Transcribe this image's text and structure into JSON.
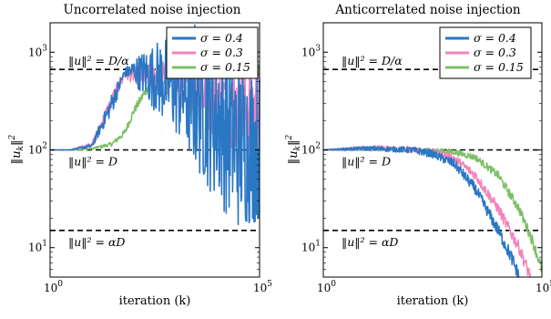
{
  "colors": {
    "s04": "#2a77c4",
    "s03": "#f383bd",
    "s015": "#7cc067",
    "ref": "#000000",
    "axis": "#000000"
  },
  "chart_data": [
    {
      "type": "line",
      "title": "Uncorrelated noise injection",
      "xlabel": "iteration (k)",
      "ylabel": "‖u_k‖²",
      "xscale": "log",
      "yscale": "log",
      "xlim": [
        1,
        100000
      ],
      "ylim": [
        5,
        2000
      ],
      "xticks": [
        {
          "v": 1,
          "b": "10",
          "e": "0"
        },
        {
          "v": 100000,
          "b": "10",
          "e": "5"
        }
      ],
      "yticks": [
        {
          "v": 10,
          "b": "10",
          "e": "1"
        },
        {
          "v": 100,
          "b": "10",
          "e": "2"
        },
        {
          "v": 1000,
          "b": "10",
          "e": "3"
        }
      ],
      "legend_position": "top-right",
      "reference_lines": [
        {
          "y": 666.7,
          "label": "‖u‖² = D/α"
        },
        {
          "y": 100,
          "label": "‖u‖² = D"
        },
        {
          "y": 15,
          "label": "‖u‖² = αD"
        }
      ],
      "series": [
        {
          "name": "σ = 0.4",
          "color_key": "s04",
          "noisy": true,
          "x": [
            1,
            3,
            10,
            30,
            60,
            100,
            300,
            1000,
            3000,
            10000,
            30000,
            100000
          ],
          "y": [
            100,
            100,
            110,
            300,
            620,
            650,
            560,
            480,
            360,
            230,
            120,
            110
          ],
          "band": [
            1,
            1,
            1.05,
            1.3,
            1.1,
            1.3,
            2.2,
            3.5,
            6,
            8,
            8,
            6
          ]
        },
        {
          "name": "σ = 0.3",
          "color_key": "s03",
          "noisy": true,
          "x": [
            1,
            3,
            10,
            30,
            60,
            100,
            300,
            1000,
            3000,
            10000,
            30000,
            100000
          ],
          "y": [
            100,
            100,
            115,
            320,
            600,
            580,
            560,
            520,
            440,
            340,
            260,
            260
          ],
          "band": [
            1,
            1,
            1.05,
            1.2,
            1.15,
            1.2,
            1.4,
            1.7,
            2.2,
            2.6,
            2.8,
            2.8
          ]
        },
        {
          "name": "σ = 0.15",
          "color_key": "s015",
          "noisy": true,
          "x": [
            1,
            3,
            10,
            30,
            60,
            100,
            300,
            1000,
            3000,
            10000,
            30000,
            100000
          ],
          "y": [
            100,
            100,
            103,
            115,
            150,
            250,
            560,
            650,
            650,
            650,
            650,
            650
          ],
          "band": [
            1,
            1,
            1.02,
            1.05,
            1.08,
            1.1,
            1.12,
            1.15,
            1.2,
            1.2,
            1.2,
            1.2
          ]
        }
      ]
    },
    {
      "type": "line",
      "title": "Anticorrelated noise injection",
      "xlabel": "iteration (k)",
      "ylabel": "‖u_k‖²",
      "xscale": "log",
      "yscale": "log",
      "xlim": [
        1,
        100000
      ],
      "ylim": [
        5,
        2000
      ],
      "xticks": [
        {
          "v": 1,
          "b": "10",
          "e": "0"
        },
        {
          "v": 100000,
          "b": "10",
          "e": "5"
        }
      ],
      "yticks": [
        {
          "v": 10,
          "b": "10",
          "e": "1"
        },
        {
          "v": 100,
          "b": "10",
          "e": "2"
        },
        {
          "v": 1000,
          "b": "10",
          "e": "3"
        }
      ],
      "legend_position": "top-right",
      "reference_lines": [
        {
          "y": 666.7,
          "label": "‖u‖² = D/α"
        },
        {
          "y": 100,
          "label": "‖u‖² = D"
        },
        {
          "y": 15,
          "label": "‖u‖² = αD"
        }
      ],
      "series": [
        {
          "name": "σ = 0.4",
          "color_key": "s04",
          "noisy": true,
          "x": [
            1,
            3,
            10,
            30,
            100,
            300,
            1000,
            3000,
            10000,
            20000,
            30000
          ],
          "y": [
            100,
            102,
            104,
            102,
            100,
            92,
            72,
            40,
            15,
            8,
            5
          ],
          "band": [
            1,
            1.03,
            1.05,
            1.06,
            1.08,
            1.1,
            1.12,
            1.14,
            1.16,
            1.18,
            1.2
          ]
        },
        {
          "name": "σ = 0.3",
          "color_key": "s03",
          "noisy": true,
          "x": [
            1,
            3,
            10,
            30,
            100,
            300,
            1000,
            3000,
            10000,
            30000,
            55000
          ],
          "y": [
            100,
            102,
            106,
            104,
            101,
            96,
            82,
            55,
            25,
            10,
            5
          ],
          "band": [
            1,
            1.03,
            1.05,
            1.06,
            1.07,
            1.08,
            1.1,
            1.12,
            1.14,
            1.16,
            1.18
          ]
        },
        {
          "name": "σ = 0.15",
          "color_key": "s015",
          "noisy": true,
          "x": [
            1,
            3,
            10,
            30,
            100,
            300,
            1000,
            3000,
            10000,
            30000,
            60000,
            100000
          ],
          "y": [
            100,
            100,
            101,
            101,
            100,
            99,
            95,
            84,
            55,
            25,
            12,
            6
          ],
          "band": [
            1,
            1.02,
            1.03,
            1.04,
            1.05,
            1.06,
            1.07,
            1.08,
            1.1,
            1.12,
            1.14,
            1.15
          ]
        }
      ]
    }
  ]
}
